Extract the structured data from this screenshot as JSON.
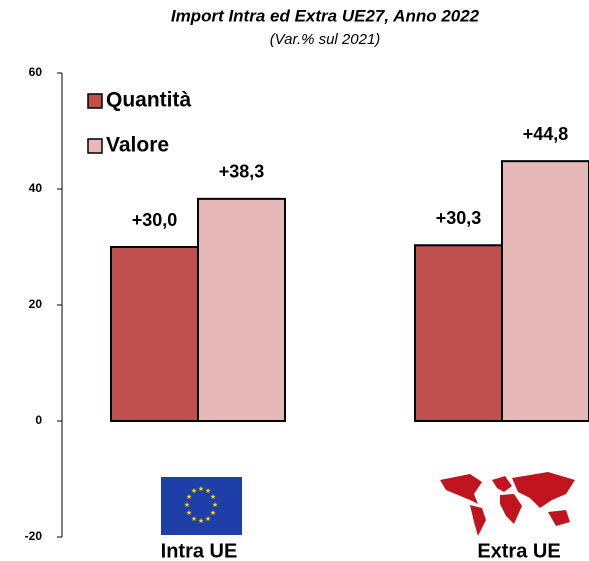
{
  "chart_data": {
    "type": "bar",
    "title": "Import Intra ed Extra UE27, Anno 2022",
    "subtitle": "(Var.% sul 2021)",
    "categories": [
      "Intra UE",
      "Extra UE"
    ],
    "series": [
      {
        "name": "Quantità",
        "color": "#c0504d",
        "values": [
          30.0,
          30.3
        ],
        "value_labels": [
          "+30,0",
          "+30,3"
        ]
      },
      {
        "name": "Valore",
        "color": "#e6b8b7",
        "values": [
          38.3,
          44.8
        ],
        "value_labels": [
          "+38,3",
          "+44,8"
        ]
      }
    ],
    "ylim": [
      -20,
      60
    ],
    "yticks": [
      -20,
      0,
      20,
      40,
      60
    ],
    "grid": false,
    "legend": "top-left"
  }
}
